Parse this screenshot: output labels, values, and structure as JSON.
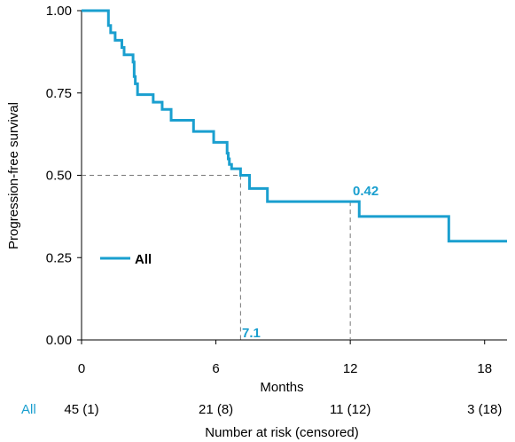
{
  "chart_data": {
    "type": "line",
    "step": true,
    "ylabel": "Progression-free survival",
    "xlabel": "Months",
    "xlim": [
      0,
      19
    ],
    "ylim": [
      0,
      1
    ],
    "x_ticks": [
      "0",
      "6",
      "12",
      "18"
    ],
    "x_tick_values": [
      0,
      6,
      12,
      18
    ],
    "y_ticks": [
      "0.00",
      "0.25",
      "0.50",
      "0.75",
      "1.00"
    ],
    "y_tick_values": [
      0,
      0.25,
      0.5,
      0.75,
      1.0
    ],
    "grid": false,
    "series": [
      {
        "name": "All",
        "color": "#1a9fcf",
        "x": [
          0,
          1.2,
          1.3,
          1.5,
          1.7,
          1.8,
          1.9,
          2.0,
          2.1,
          2.3,
          2.35,
          2.4,
          2.5,
          3.2,
          3.6,
          4.0,
          5.0,
          5.9,
          6.5,
          6.55,
          6.6,
          6.7,
          7.1,
          7.5,
          8.3,
          12.4,
          16.4,
          19.0
        ],
        "y": [
          1.0,
          0.955,
          0.933,
          0.91,
          0.91,
          0.888,
          0.866,
          0.866,
          0.866,
          0.844,
          0.8,
          0.778,
          0.745,
          0.722,
          0.7,
          0.667,
          0.633,
          0.6,
          0.567,
          0.55,
          0.533,
          0.52,
          0.5,
          0.46,
          0.42,
          0.375,
          0.3,
          0.3
        ]
      }
    ],
    "annotations": {
      "median_label": "7.1",
      "median_x": 7.1,
      "median_y": 0.5,
      "rate_label": "0.42",
      "rate_x": 12.0,
      "rate_y": 0.42
    },
    "legend_label": "All",
    "legend_position": "left",
    "risk_table": {
      "row_label": "All",
      "title": "Number at risk (censored)",
      "values": [
        "45 (1)",
        "21 (8)",
        "11 (12)",
        "3 (18)"
      ],
      "at_x": [
        0,
        6,
        12,
        18
      ]
    }
  }
}
